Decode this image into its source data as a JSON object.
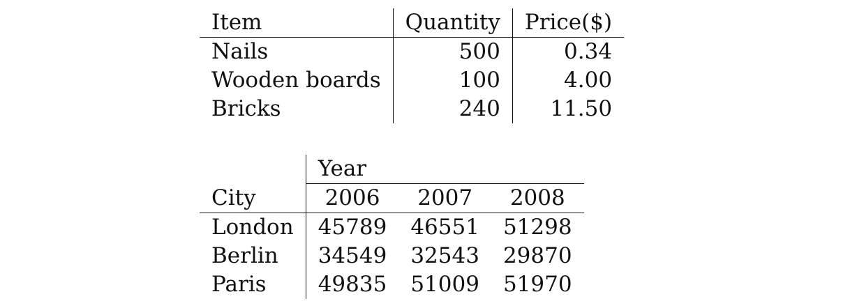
{
  "table1": {
    "headers": [
      "Item",
      "Quantity",
      "Price($)"
    ],
    "rows": [
      [
        "Nails",
        "500",
        "0.34"
      ],
      [
        "Wooden boards",
        "100",
        "4.00"
      ],
      [
        "Bricks",
        "240",
        "11.50"
      ]
    ]
  },
  "table2": {
    "group_header": "Year",
    "row_header": "City",
    "years": [
      "2006",
      "2007",
      "2008"
    ],
    "rows": [
      [
        "London",
        "45789",
        "46551",
        "51298"
      ],
      [
        "Berlin",
        "34549",
        "32543",
        "29870"
      ],
      [
        "Paris",
        "49835",
        "51009",
        "51970"
      ]
    ]
  }
}
